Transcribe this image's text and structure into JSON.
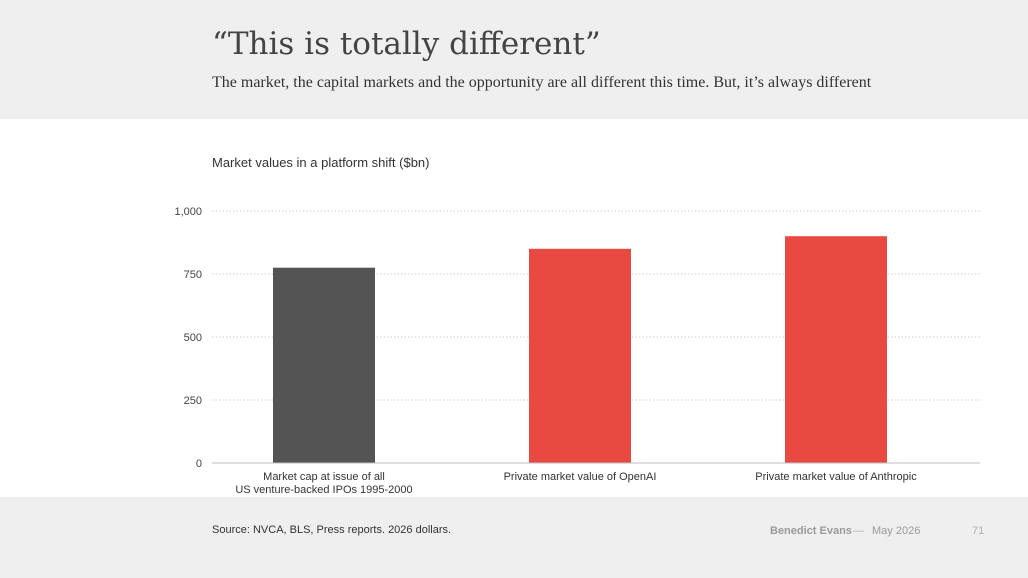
{
  "slide": {
    "title": "“This is totally different”",
    "subtitle": "The market, the capital markets and the opportunity are all different this time. But, it’s always different",
    "source": "Source: NVCA, BLS, Press reports. 2026 dollars.",
    "author": "Benedict Evans",
    "separator": "—",
    "date": "May 2026",
    "page_number": "71"
  },
  "chart_data": {
    "type": "bar",
    "title": "Market values in a platform shift ($bn)",
    "categories": [
      [
        "Market cap at issue of all",
        "US venture-backed IPOs 1995-2000"
      ],
      [
        "Private market value of OpenAI"
      ],
      [
        "Private market value of Anthropic"
      ]
    ],
    "values": [
      775,
      850,
      900
    ],
    "colors": [
      "#545454",
      "#e84a42",
      "#e84a42"
    ],
    "ylim": [
      0,
      1000
    ],
    "yticks": [
      0,
      250,
      500,
      750,
      1000
    ],
    "ytick_labels": [
      "0",
      "250",
      "500",
      "750",
      "1,000"
    ],
    "grid": true,
    "gridline_color": "#cfcfcf",
    "axis_color": "#bdbdbd"
  }
}
